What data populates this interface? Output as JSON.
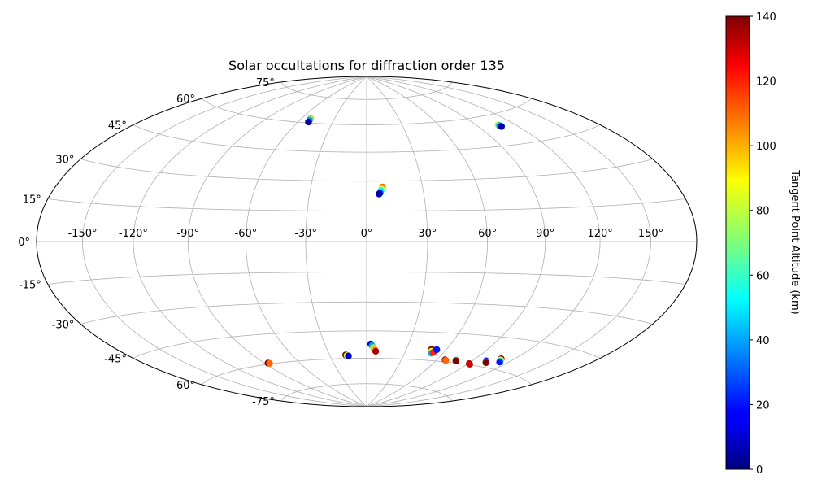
{
  "chart_data": {
    "type": "scatter",
    "projection": "hammer",
    "title": "Solar occultations for diffraction order 135",
    "grid": true,
    "lon_ticks": [
      -150,
      -120,
      -90,
      -60,
      -30,
      0,
      30,
      60,
      90,
      120,
      150
    ],
    "lat_ticks": [
      -75,
      -60,
      -45,
      -30,
      -15,
      0,
      15,
      30,
      45,
      60,
      75
    ],
    "colorbar": {
      "label": "Tangent Point Altitude (km)",
      "min": 0,
      "max": 140,
      "ticks": [
        0,
        20,
        40,
        60,
        80,
        100,
        120,
        140
      ],
      "colormap": "jet",
      "placement": "right"
    },
    "groups": [
      {
        "lon": [
          -52,
          -52,
          -51.5,
          -51
        ],
        "lat": [
          62.5,
          62,
          61.5,
          60.5
        ],
        "alt": [
          100,
          70,
          40,
          5
        ]
      },
      {
        "lon": [
          107,
          107,
          107.5
        ],
        "lat": [
          55,
          54.5,
          54
        ],
        "alt": [
          80,
          40,
          5
        ]
      },
      {
        "lon": [
          8.5,
          8,
          7.5,
          7,
          6.5
        ],
        "lat": [
          27,
          26,
          25,
          24,
          23.5
        ],
        "alt": [
          110,
          80,
          50,
          25,
          5
        ]
      },
      {
        "lon": [
          3,
          4,
          5,
          6,
          7
        ],
        "lat": [
          -52,
          -53,
          -54,
          -55,
          -56
        ],
        "alt": [
          5,
          40,
          70,
          100,
          135
        ]
      },
      {
        "lon": [
          -17,
          -16,
          -15
        ],
        "lat": [
          -58,
          -58.3,
          -58.6
        ],
        "alt": [
          140,
          80,
          10
        ]
      },
      {
        "lon": [
          -87,
          -86
        ],
        "lat": [
          -59.5,
          -59.7
        ],
        "alt": [
          140,
          110
        ]
      },
      {
        "lon": [
          49,
          50,
          51,
          52,
          53
        ],
        "lat": [
          -54,
          -55,
          -56,
          -55.5,
          -54
        ],
        "alt": [
          140,
          90,
          40,
          120,
          20
        ]
      },
      {
        "lon": [
          67,
          68
        ],
        "lat": [
          -59,
          -59.2
        ],
        "alt": [
          140,
          110
        ]
      },
      {
        "lon": [
          76,
          76.5,
          77
        ],
        "lat": [
          -58.5,
          -58.8,
          -59
        ],
        "alt": [
          60,
          120,
          140
        ]
      },
      {
        "lon": [
          91,
          92
        ],
        "lat": [
          -59.5,
          -59.7
        ],
        "alt": [
          140,
          130
        ]
      },
      {
        "lon": [
          101,
          102,
          103
        ],
        "lat": [
          -57,
          -57.5,
          -57.8
        ],
        "alt": [
          20,
          70,
          140
        ]
      },
      {
        "lon": [
          110,
          111,
          112,
          113
        ],
        "lat": [
          -55,
          -55.5,
          -56,
          -56.5
        ],
        "alt": [
          140,
          90,
          50,
          20
        ]
      }
    ]
  }
}
